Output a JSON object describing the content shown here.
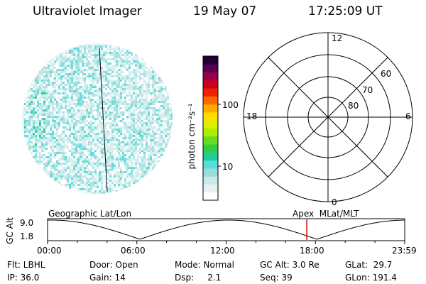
{
  "header": {
    "instrument": "Ultraviolet Imager",
    "date": "19 May 07",
    "time": "17:25:09 UT"
  },
  "colorbar": {
    "unit_label": "photon cm⁻²s⁻¹",
    "tick_labels": [
      "100",
      "10"
    ],
    "colors": [
      "#ffffff",
      "#e6f2f2",
      "#cce8e8",
      "#99dddd",
      "#55dddd",
      "#22cc99",
      "#33cc44",
      "#66dd22",
      "#aaee00",
      "#ddee00",
      "#ffdd00",
      "#ffaa00",
      "#ff6600",
      "#ee2200",
      "#cc0022",
      "#990044",
      "#550055",
      "#220033"
    ]
  },
  "polar_plot": {
    "mlt_labels": {
      "top": "12",
      "left": "18",
      "right": "6",
      "bottom": "0"
    },
    "lat_labels": [
      "60",
      "70",
      "80"
    ]
  },
  "timeline": {
    "left_label": "Geographic Lat/Lon",
    "right_label": "Apex  MLat/MLT",
    "axis_title": "GC Alt",
    "y_labels": [
      "9.0",
      "1.8"
    ],
    "time_ticks": [
      "00:00",
      "06:00",
      "12:00",
      "18:00",
      "23:59"
    ],
    "cursor_time_hours": 17.42,
    "cursor_color": "#dd0000"
  },
  "status": {
    "flt": "Flt: LBHL",
    "ip": "IP: 36.0",
    "door": "Door: Open",
    "gain": "Gain: 14",
    "mode": "Mode: Normal",
    "dsp": "Dsp:     2.1",
    "gc_alt": "GC Alt: 3.0 Re",
    "seq": "Seq: 39",
    "glat": "GLat:  29.7",
    "glon": "GLon: 191.4"
  }
}
